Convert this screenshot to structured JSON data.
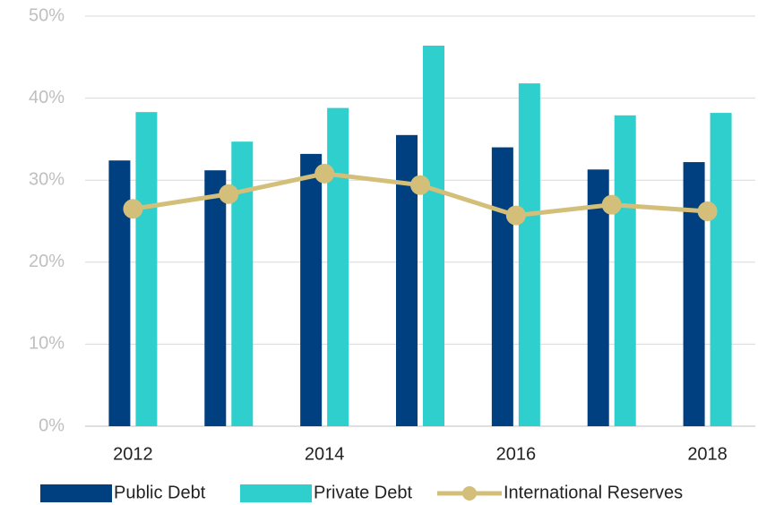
{
  "chart_data": {
    "type": "bar",
    "categories": [
      "2012",
      null,
      "2014",
      null,
      "2016",
      null,
      "2018"
    ],
    "series": [
      {
        "name": "Public Debt",
        "color": "#004080",
        "values": [
          32.4,
          31.2,
          33.2,
          35.5,
          34.0,
          31.3,
          32.2
        ]
      },
      {
        "name": "Private Debt",
        "color": "#2ecfcc",
        "values": [
          38.3,
          34.7,
          38.8,
          46.4,
          41.8,
          37.9,
          38.2
        ]
      },
      {
        "name": "International Reserves",
        "color": "#d4bf7a",
        "type": "line",
        "values": [
          26.5,
          28.3,
          30.8,
          29.4,
          25.7,
          27.0,
          26.2
        ]
      }
    ],
    "ylim": [
      0,
      50
    ],
    "yticks": [
      {
        "value": 0,
        "label": "0%"
      },
      {
        "value": 10,
        "label": "10%"
      },
      {
        "value": 20,
        "label": "20%"
      },
      {
        "value": 30,
        "label": "30%"
      },
      {
        "value": 40,
        "label": "40%"
      },
      {
        "value": 50,
        "label": "50%"
      }
    ],
    "grid": true,
    "legend": "bottom"
  }
}
